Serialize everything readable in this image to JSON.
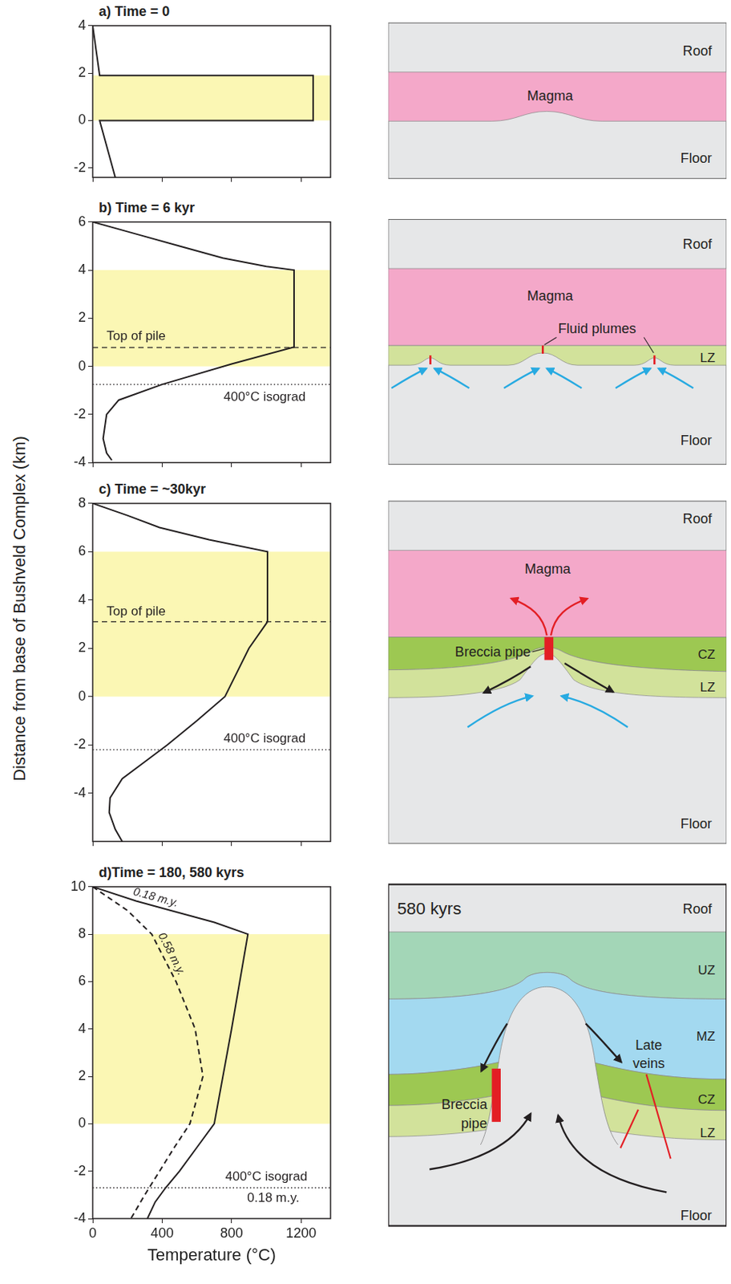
{
  "ylabel": "Distance from base of Bushveld Complex (km)",
  "chart_data": [
    {
      "type": "line",
      "title": "a) Time = 0",
      "xlim": [
        0,
        1370
      ],
      "xticks": [
        0,
        400,
        800,
        1200
      ],
      "ylim": [
        -2.4,
        4
      ],
      "yticks": [
        -2,
        0,
        2,
        4
      ],
      "tick_labels": "y",
      "bands": [
        {
          "from": 0,
          "to": 1.9,
          "color": "#fbf7b4"
        }
      ],
      "series": [
        {
          "color": "#231f20",
          "line_style": "solid",
          "x": [
            0,
            40,
            1270,
            1270,
            40,
            130
          ],
          "values": [
            4,
            1.9,
            1.9,
            0,
            0,
            -2.4
          ]
        }
      ]
    },
    {
      "type": "line",
      "title": "b) Time = 6 kyr",
      "xlim": [
        0,
        1370
      ],
      "xticks": [
        0,
        400,
        800,
        1200
      ],
      "ylim": [
        -4,
        6
      ],
      "yticks": [
        -4,
        -2,
        0,
        2,
        4,
        6
      ],
      "tick_labels": "y",
      "bands": [
        {
          "from": 0,
          "to": 4,
          "color": "#fbf7b4"
        }
      ],
      "hlines": [
        {
          "y": 0.78,
          "line_style": "dashed"
        },
        {
          "y": -0.75,
          "line_style": "dotted"
        }
      ],
      "annotations": [
        {
          "text": "Top of pile",
          "x": 250,
          "y": 1.25
        },
        {
          "text": "400°C isograd",
          "x": 990,
          "y": -1.3
        }
      ],
      "series": [
        {
          "color": "#231f20",
          "line_style": "solid",
          "x": [
            0,
            250,
            500,
            750,
            1000,
            1160,
            1160,
            800,
            400,
            150,
            80,
            60,
            80,
            110
          ],
          "values": [
            6,
            5.5,
            5.0,
            4.5,
            4.15,
            4.0,
            0.8,
            0.1,
            -0.75,
            -1.4,
            -2,
            -3,
            -3.6,
            -3.9
          ]
        }
      ]
    },
    {
      "type": "line",
      "title": "c) Time = ~30kyr",
      "xlim": [
        0,
        1370
      ],
      "xticks": [
        0,
        400,
        800,
        1200
      ],
      "ylim": [
        -6,
        8
      ],
      "yticks": [
        -4,
        -2,
        0,
        2,
        4,
        6,
        8
      ],
      "tick_labels": "y",
      "bands": [
        {
          "from": 0,
          "to": 6,
          "color": "#fbf7b4"
        }
      ],
      "hlines": [
        {
          "y": 3.1,
          "line_style": "dashed"
        },
        {
          "y": -2.2,
          "line_style": "dotted"
        }
      ],
      "annotations": [
        {
          "text": "Top of pile",
          "x": 250,
          "y": 3.5
        },
        {
          "text": "400°C isograd",
          "x": 990,
          "y": -1.75
        }
      ],
      "series": [
        {
          "color": "#231f20",
          "line_style": "solid",
          "x": [
            0,
            200,
            385,
            670,
            1007,
            1007,
            900,
            762,
            600,
            430,
            300,
            170,
            100,
            95,
            130,
            170
          ],
          "values": [
            8,
            7.5,
            7,
            6.5,
            6,
            3.1,
            2,
            0,
            -1,
            -2,
            -2.7,
            -3.4,
            -4.2,
            -4.8,
            -5.5,
            -6
          ]
        }
      ]
    },
    {
      "type": "line",
      "title": "d)Time = 180, 580 kyrs",
      "xlabel": "Temperature (°C)",
      "xlim": [
        0,
        1370
      ],
      "xticks": [
        0,
        400,
        800,
        1200
      ],
      "ylim": [
        -4,
        10
      ],
      "yticks": [
        -4,
        -2,
        0,
        2,
        4,
        6,
        8,
        10
      ],
      "bands": [
        {
          "from": 0,
          "to": 8,
          "color": "#fbf7b4"
        }
      ],
      "hlines": [
        {
          "y": -2.7,
          "line_style": "dotted"
        }
      ],
      "annotations": [
        {
          "text": "400°C isograd",
          "x": 1000,
          "y": -2.25
        },
        {
          "text": "0.18 m.y.",
          "x": 1040,
          "y": -3.15
        }
      ],
      "series": [
        {
          "name": "0.18 m.y.",
          "color": "#231f20",
          "line_style": "solid",
          "x": [
            0,
            250,
            450,
            700,
            894,
            800,
            700,
            600,
            500,
            420,
            360,
            315
          ],
          "values": [
            10,
            9.4,
            9,
            8.5,
            8,
            4,
            0,
            -1,
            -2,
            -2.7,
            -3.3,
            -4
          ]
        },
        {
          "name": "0.58 m.y.",
          "color": "#231f20",
          "line_style": "dashed",
          "x": [
            0,
            200,
            340,
            480,
            590,
            635,
            560,
            470,
            385,
            300,
            220
          ],
          "values": [
            10,
            9,
            8,
            6,
            4,
            2,
            0,
            -1,
            -2,
            -3,
            -4
          ]
        }
      ]
    }
  ],
  "diagrams": [
    {
      "labels": {
        "roof": "Roof",
        "magma": "Magma",
        "floor": "Floor"
      }
    },
    {
      "labels": {
        "roof": "Roof",
        "magma": "Magma",
        "plumes": "Fluid plumes",
        "lz": "LZ",
        "floor": "Floor"
      }
    },
    {
      "labels": {
        "roof": "Roof",
        "magma": "Magma",
        "pipe": "Breccia pipe",
        "cz": "CZ",
        "lz": "LZ",
        "floor": "Floor"
      }
    },
    {
      "labels": {
        "time": "580 kyrs",
        "roof": "Roof",
        "uz": "UZ",
        "mz": "MZ",
        "veins": "Late veins",
        "pipe": "Breccia pipe",
        "cz": "CZ",
        "lz": "LZ",
        "floor": "Floor"
      }
    }
  ]
}
